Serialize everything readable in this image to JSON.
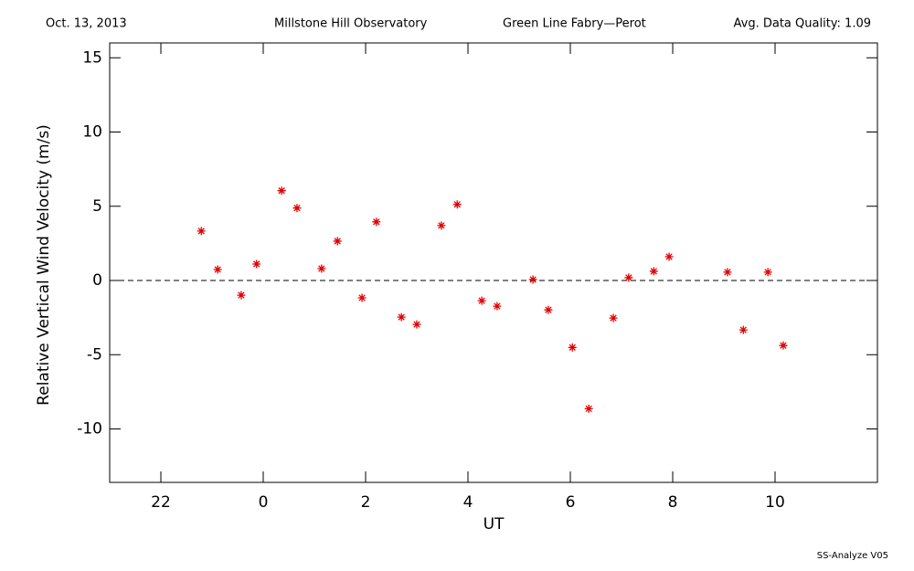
{
  "chart_data": {
    "type": "scatter",
    "header": [
      "Oct. 13, 2013",
      "Millstone Hill Observatory",
      "Green Line Fabry—Perot",
      "Avg. Data Quality: 1.09"
    ],
    "footer": "SS-Analyze V05",
    "x_label": "UT",
    "y_label": "Relative Vertical Wind Velocity (m/s)",
    "color": "#e00000",
    "reference_line": 0,
    "xlim": [
      -3,
      12
    ],
    "ylim": [
      -13.6,
      16
    ],
    "xticks": [
      {
        "value": -2,
        "label": "22"
      },
      0,
      2,
      4,
      6,
      8,
      10
    ],
    "yticks": [
      -10,
      -5,
      0,
      5,
      10,
      15
    ],
    "x": [
      -1.21,
      -0.89,
      -0.43,
      -0.13,
      0.36,
      0.66,
      1.14,
      1.45,
      1.93,
      2.21,
      2.7,
      3.0,
      3.48,
      3.79,
      4.27,
      4.57,
      5.27,
      5.57,
      6.04,
      6.36,
      6.84,
      7.14,
      7.63,
      7.93,
      9.07,
      9.38,
      9.86,
      10.16
    ],
    "values": [
      3.33,
      0.74,
      -0.99,
      1.11,
      6.05,
      4.88,
      0.8,
      2.65,
      -1.17,
      3.95,
      -2.47,
      -2.96,
      3.7,
      5.12,
      -1.36,
      -1.73,
      0.06,
      -1.98,
      -4.51,
      -8.64,
      -2.53,
      0.19,
      0.62,
      1.6,
      0.56,
      -3.33,
      0.56,
      -4.38
    ]
  }
}
